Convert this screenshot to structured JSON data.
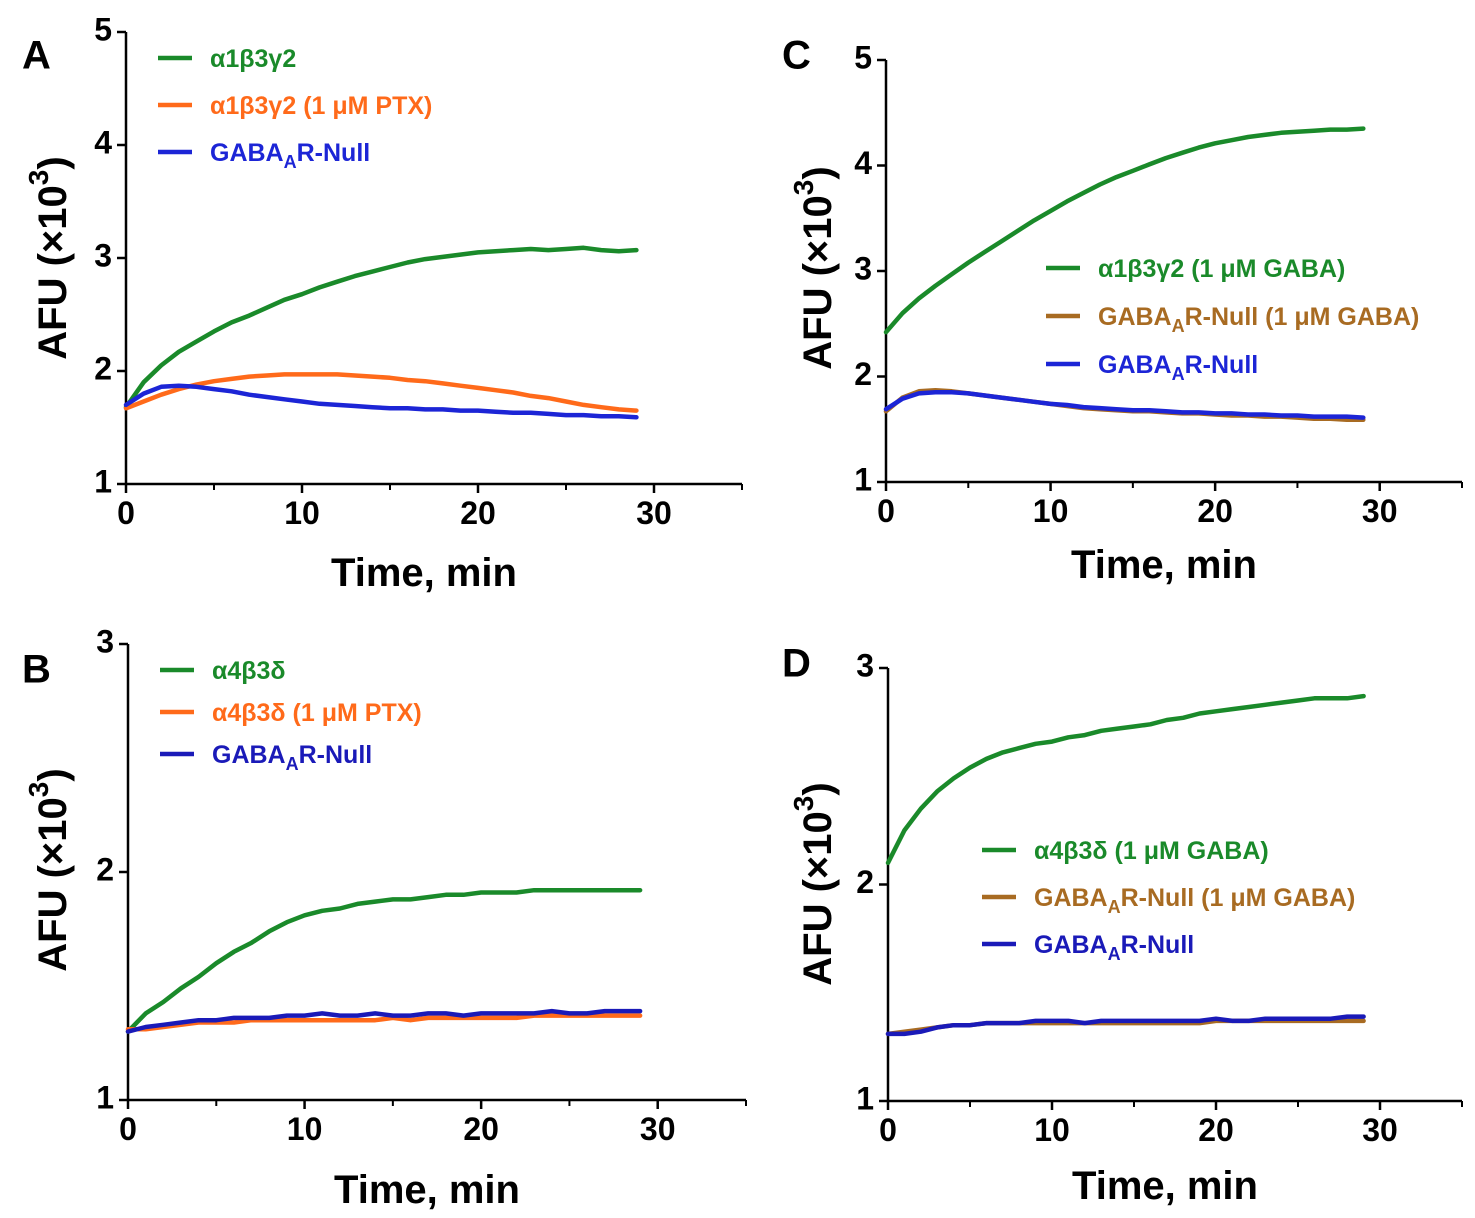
{
  "chart_data": [
    {
      "panel": "A",
      "type": "line",
      "xlabel": "Time, min",
      "ylabel": "AFU (×10³)",
      "xlim": [
        0,
        35
      ],
      "ylim": [
        1,
        5
      ],
      "xticks": [
        "0",
        "10",
        "20",
        "30"
      ],
      "yticks": [
        "1",
        "2",
        "3",
        "4",
        "5"
      ],
      "grid": false,
      "legend": "top-left",
      "series": [
        {
          "name": "α1β3γ2",
          "color": "#1a8a2a",
          "x": [
            0,
            1,
            2,
            3,
            4,
            5,
            6,
            7,
            8,
            9,
            10,
            11,
            12,
            13,
            14,
            15,
            16,
            17,
            18,
            19,
            20,
            21,
            22,
            23,
            24,
            25,
            26,
            27,
            28,
            29
          ],
          "y": [
            1.68,
            1.9,
            2.05,
            2.17,
            2.26,
            2.35,
            2.43,
            2.49,
            2.56,
            2.63,
            2.68,
            2.74,
            2.79,
            2.84,
            2.88,
            2.92,
            2.96,
            2.99,
            3.01,
            3.03,
            3.05,
            3.06,
            3.07,
            3.08,
            3.07,
            3.08,
            3.09,
            3.07,
            3.06,
            3.07
          ]
        },
        {
          "name": "α1β3γ2 (1 μM PTX)",
          "color": "#ff6a1a",
          "x": [
            0,
            1,
            2,
            3,
            4,
            5,
            6,
            7,
            8,
            9,
            10,
            11,
            12,
            13,
            14,
            15,
            16,
            17,
            18,
            19,
            20,
            21,
            22,
            23,
            24,
            25,
            26,
            27,
            28,
            29
          ],
          "y": [
            1.67,
            1.73,
            1.79,
            1.84,
            1.88,
            1.91,
            1.93,
            1.95,
            1.96,
            1.97,
            1.97,
            1.97,
            1.97,
            1.96,
            1.95,
            1.94,
            1.92,
            1.91,
            1.89,
            1.87,
            1.85,
            1.83,
            1.81,
            1.78,
            1.76,
            1.73,
            1.7,
            1.68,
            1.66,
            1.65
          ]
        },
        {
          "name": "GABAAR-Null",
          "color": "#1c25d6",
          "x": [
            0,
            1,
            2,
            3,
            4,
            5,
            6,
            7,
            8,
            9,
            10,
            11,
            12,
            13,
            14,
            15,
            16,
            17,
            18,
            19,
            20,
            21,
            22,
            23,
            24,
            25,
            26,
            27,
            28,
            29
          ],
          "y": [
            1.7,
            1.8,
            1.86,
            1.87,
            1.86,
            1.84,
            1.82,
            1.79,
            1.77,
            1.75,
            1.73,
            1.71,
            1.7,
            1.69,
            1.68,
            1.67,
            1.67,
            1.66,
            1.66,
            1.65,
            1.65,
            1.64,
            1.63,
            1.63,
            1.62,
            1.61,
            1.61,
            1.6,
            1.6,
            1.59
          ]
        }
      ]
    },
    {
      "panel": "B",
      "type": "line",
      "xlabel": "Time, min",
      "ylabel": "AFU (×10³)",
      "xlim": [
        0,
        35
      ],
      "ylim": [
        1,
        3
      ],
      "xticks": [
        "0",
        "10",
        "20",
        "30"
      ],
      "yticks": [
        "1",
        "2",
        "3"
      ],
      "grid": false,
      "legend": "top-left",
      "series": [
        {
          "name": "α4β3δ",
          "color": "#1a8a2a",
          "x": [
            0,
            1,
            2,
            3,
            4,
            5,
            6,
            7,
            8,
            9,
            10,
            11,
            12,
            13,
            14,
            15,
            16,
            17,
            18,
            19,
            20,
            21,
            22,
            23,
            24,
            25,
            26,
            27,
            28,
            29
          ],
          "y": [
            1.3,
            1.38,
            1.43,
            1.49,
            1.54,
            1.6,
            1.65,
            1.69,
            1.74,
            1.78,
            1.81,
            1.83,
            1.84,
            1.86,
            1.87,
            1.88,
            1.88,
            1.89,
            1.9,
            1.9,
            1.91,
            1.91,
            1.91,
            1.92,
            1.92,
            1.92,
            1.92,
            1.92,
            1.92,
            1.92
          ]
        },
        {
          "name": "α4β3δ (1 μM PTX)",
          "color": "#ff6a1a",
          "x": [
            0,
            1,
            2,
            3,
            4,
            5,
            6,
            7,
            8,
            9,
            10,
            11,
            12,
            13,
            14,
            15,
            16,
            17,
            18,
            19,
            20,
            21,
            22,
            23,
            24,
            25,
            26,
            27,
            28,
            29
          ],
          "y": [
            1.31,
            1.31,
            1.32,
            1.33,
            1.34,
            1.34,
            1.34,
            1.35,
            1.35,
            1.35,
            1.35,
            1.35,
            1.35,
            1.35,
            1.35,
            1.36,
            1.35,
            1.36,
            1.36,
            1.36,
            1.36,
            1.36,
            1.36,
            1.37,
            1.37,
            1.37,
            1.37,
            1.37,
            1.37,
            1.37
          ]
        },
        {
          "name": "GABAAR-Null",
          "color": "#1a1ab8",
          "x": [
            0,
            1,
            2,
            3,
            4,
            5,
            6,
            7,
            8,
            9,
            10,
            11,
            12,
            13,
            14,
            15,
            16,
            17,
            18,
            19,
            20,
            21,
            22,
            23,
            24,
            25,
            26,
            27,
            28,
            29
          ],
          "y": [
            1.3,
            1.32,
            1.33,
            1.34,
            1.35,
            1.35,
            1.36,
            1.36,
            1.36,
            1.37,
            1.37,
            1.38,
            1.37,
            1.37,
            1.38,
            1.37,
            1.37,
            1.38,
            1.38,
            1.37,
            1.38,
            1.38,
            1.38,
            1.38,
            1.39,
            1.38,
            1.38,
            1.39,
            1.39,
            1.39
          ]
        }
      ]
    },
    {
      "panel": "C",
      "type": "line",
      "xlabel": "Time, min",
      "ylabel": "AFU (×10³)",
      "xlim": [
        0,
        35
      ],
      "ylim": [
        1,
        5
      ],
      "xticks": [
        "0",
        "10",
        "20",
        "30"
      ],
      "yticks": [
        "1",
        "2",
        "3",
        "4",
        "5"
      ],
      "grid": false,
      "legend": "center-right",
      "series": [
        {
          "name": "α1β3γ2 (1 μM GABA)",
          "color": "#1a8a2a",
          "x": [
            0,
            1,
            2,
            3,
            4,
            5,
            6,
            7,
            8,
            9,
            10,
            11,
            12,
            13,
            14,
            15,
            16,
            17,
            18,
            19,
            20,
            21,
            22,
            23,
            24,
            25,
            26,
            27,
            28,
            29
          ],
          "y": [
            2.42,
            2.6,
            2.74,
            2.86,
            2.97,
            3.08,
            3.18,
            3.28,
            3.38,
            3.48,
            3.57,
            3.66,
            3.74,
            3.82,
            3.89,
            3.95,
            4.01,
            4.07,
            4.12,
            4.17,
            4.21,
            4.24,
            4.27,
            4.29,
            4.31,
            4.32,
            4.33,
            4.34,
            4.34,
            4.35
          ]
        },
        {
          "name": "GABAAR-Null (1 μM GABA)",
          "color": "#a86b22",
          "x": [
            0,
            1,
            2,
            3,
            4,
            5,
            6,
            7,
            8,
            9,
            10,
            11,
            12,
            13,
            14,
            15,
            16,
            17,
            18,
            19,
            20,
            21,
            22,
            23,
            24,
            25,
            26,
            27,
            28,
            29
          ],
          "y": [
            1.67,
            1.8,
            1.86,
            1.87,
            1.86,
            1.84,
            1.82,
            1.8,
            1.78,
            1.76,
            1.74,
            1.72,
            1.7,
            1.69,
            1.68,
            1.67,
            1.67,
            1.66,
            1.65,
            1.65,
            1.64,
            1.63,
            1.63,
            1.62,
            1.62,
            1.61,
            1.6,
            1.6,
            1.59,
            1.59
          ]
        },
        {
          "name": "GABAAR-Null",
          "color": "#1c25d6",
          "x": [
            0,
            1,
            2,
            3,
            4,
            5,
            6,
            7,
            8,
            9,
            10,
            11,
            12,
            13,
            14,
            15,
            16,
            17,
            18,
            19,
            20,
            21,
            22,
            23,
            24,
            25,
            26,
            27,
            28,
            29
          ],
          "y": [
            1.69,
            1.79,
            1.84,
            1.85,
            1.85,
            1.84,
            1.82,
            1.8,
            1.78,
            1.76,
            1.74,
            1.73,
            1.71,
            1.7,
            1.69,
            1.68,
            1.68,
            1.67,
            1.66,
            1.66,
            1.65,
            1.65,
            1.64,
            1.64,
            1.63,
            1.63,
            1.62,
            1.62,
            1.62,
            1.61
          ]
        }
      ]
    },
    {
      "panel": "D",
      "type": "line",
      "xlabel": "Time, min",
      "ylabel": "AFU (×10³)",
      "xlim": [
        0,
        35
      ],
      "ylim": [
        1,
        3
      ],
      "xticks": [
        "0",
        "10",
        "20",
        "30"
      ],
      "yticks": [
        "1",
        "2",
        "3"
      ],
      "grid": false,
      "legend": "center-right",
      "series": [
        {
          "name": "α4β3δ (1 μM GABA)",
          "color": "#1a8a2a",
          "x": [
            0,
            1,
            2,
            3,
            4,
            5,
            6,
            7,
            8,
            9,
            10,
            11,
            12,
            13,
            14,
            15,
            16,
            17,
            18,
            19,
            20,
            21,
            22,
            23,
            24,
            25,
            26,
            27,
            28,
            29
          ],
          "y": [
            2.1,
            2.25,
            2.35,
            2.43,
            2.49,
            2.54,
            2.58,
            2.61,
            2.63,
            2.65,
            2.66,
            2.68,
            2.69,
            2.71,
            2.72,
            2.73,
            2.74,
            2.76,
            2.77,
            2.79,
            2.8,
            2.81,
            2.82,
            2.83,
            2.84,
            2.85,
            2.86,
            2.86,
            2.86,
            2.87
          ]
        },
        {
          "name": "GABAAR-Null (1 μM GABA)",
          "color": "#a86b22",
          "x": [
            0,
            1,
            2,
            3,
            4,
            5,
            6,
            7,
            8,
            9,
            10,
            11,
            12,
            13,
            14,
            15,
            16,
            17,
            18,
            19,
            20,
            21,
            22,
            23,
            24,
            25,
            26,
            27,
            28,
            29
          ],
          "y": [
            1.31,
            1.32,
            1.33,
            1.34,
            1.35,
            1.35,
            1.36,
            1.36,
            1.36,
            1.36,
            1.36,
            1.36,
            1.36,
            1.36,
            1.36,
            1.36,
            1.36,
            1.36,
            1.36,
            1.36,
            1.37,
            1.37,
            1.37,
            1.37,
            1.37,
            1.37,
            1.37,
            1.37,
            1.37,
            1.37
          ]
        },
        {
          "name": "GABAAR-Null",
          "color": "#1a1ab8",
          "x": [
            0,
            1,
            2,
            3,
            4,
            5,
            6,
            7,
            8,
            9,
            10,
            11,
            12,
            13,
            14,
            15,
            16,
            17,
            18,
            19,
            20,
            21,
            22,
            23,
            24,
            25,
            26,
            27,
            28,
            29
          ],
          "y": [
            1.31,
            1.31,
            1.32,
            1.34,
            1.35,
            1.35,
            1.36,
            1.36,
            1.36,
            1.37,
            1.37,
            1.37,
            1.36,
            1.37,
            1.37,
            1.37,
            1.37,
            1.37,
            1.37,
            1.37,
            1.38,
            1.37,
            1.37,
            1.38,
            1.38,
            1.38,
            1.38,
            1.38,
            1.39,
            1.39
          ]
        }
      ]
    }
  ]
}
